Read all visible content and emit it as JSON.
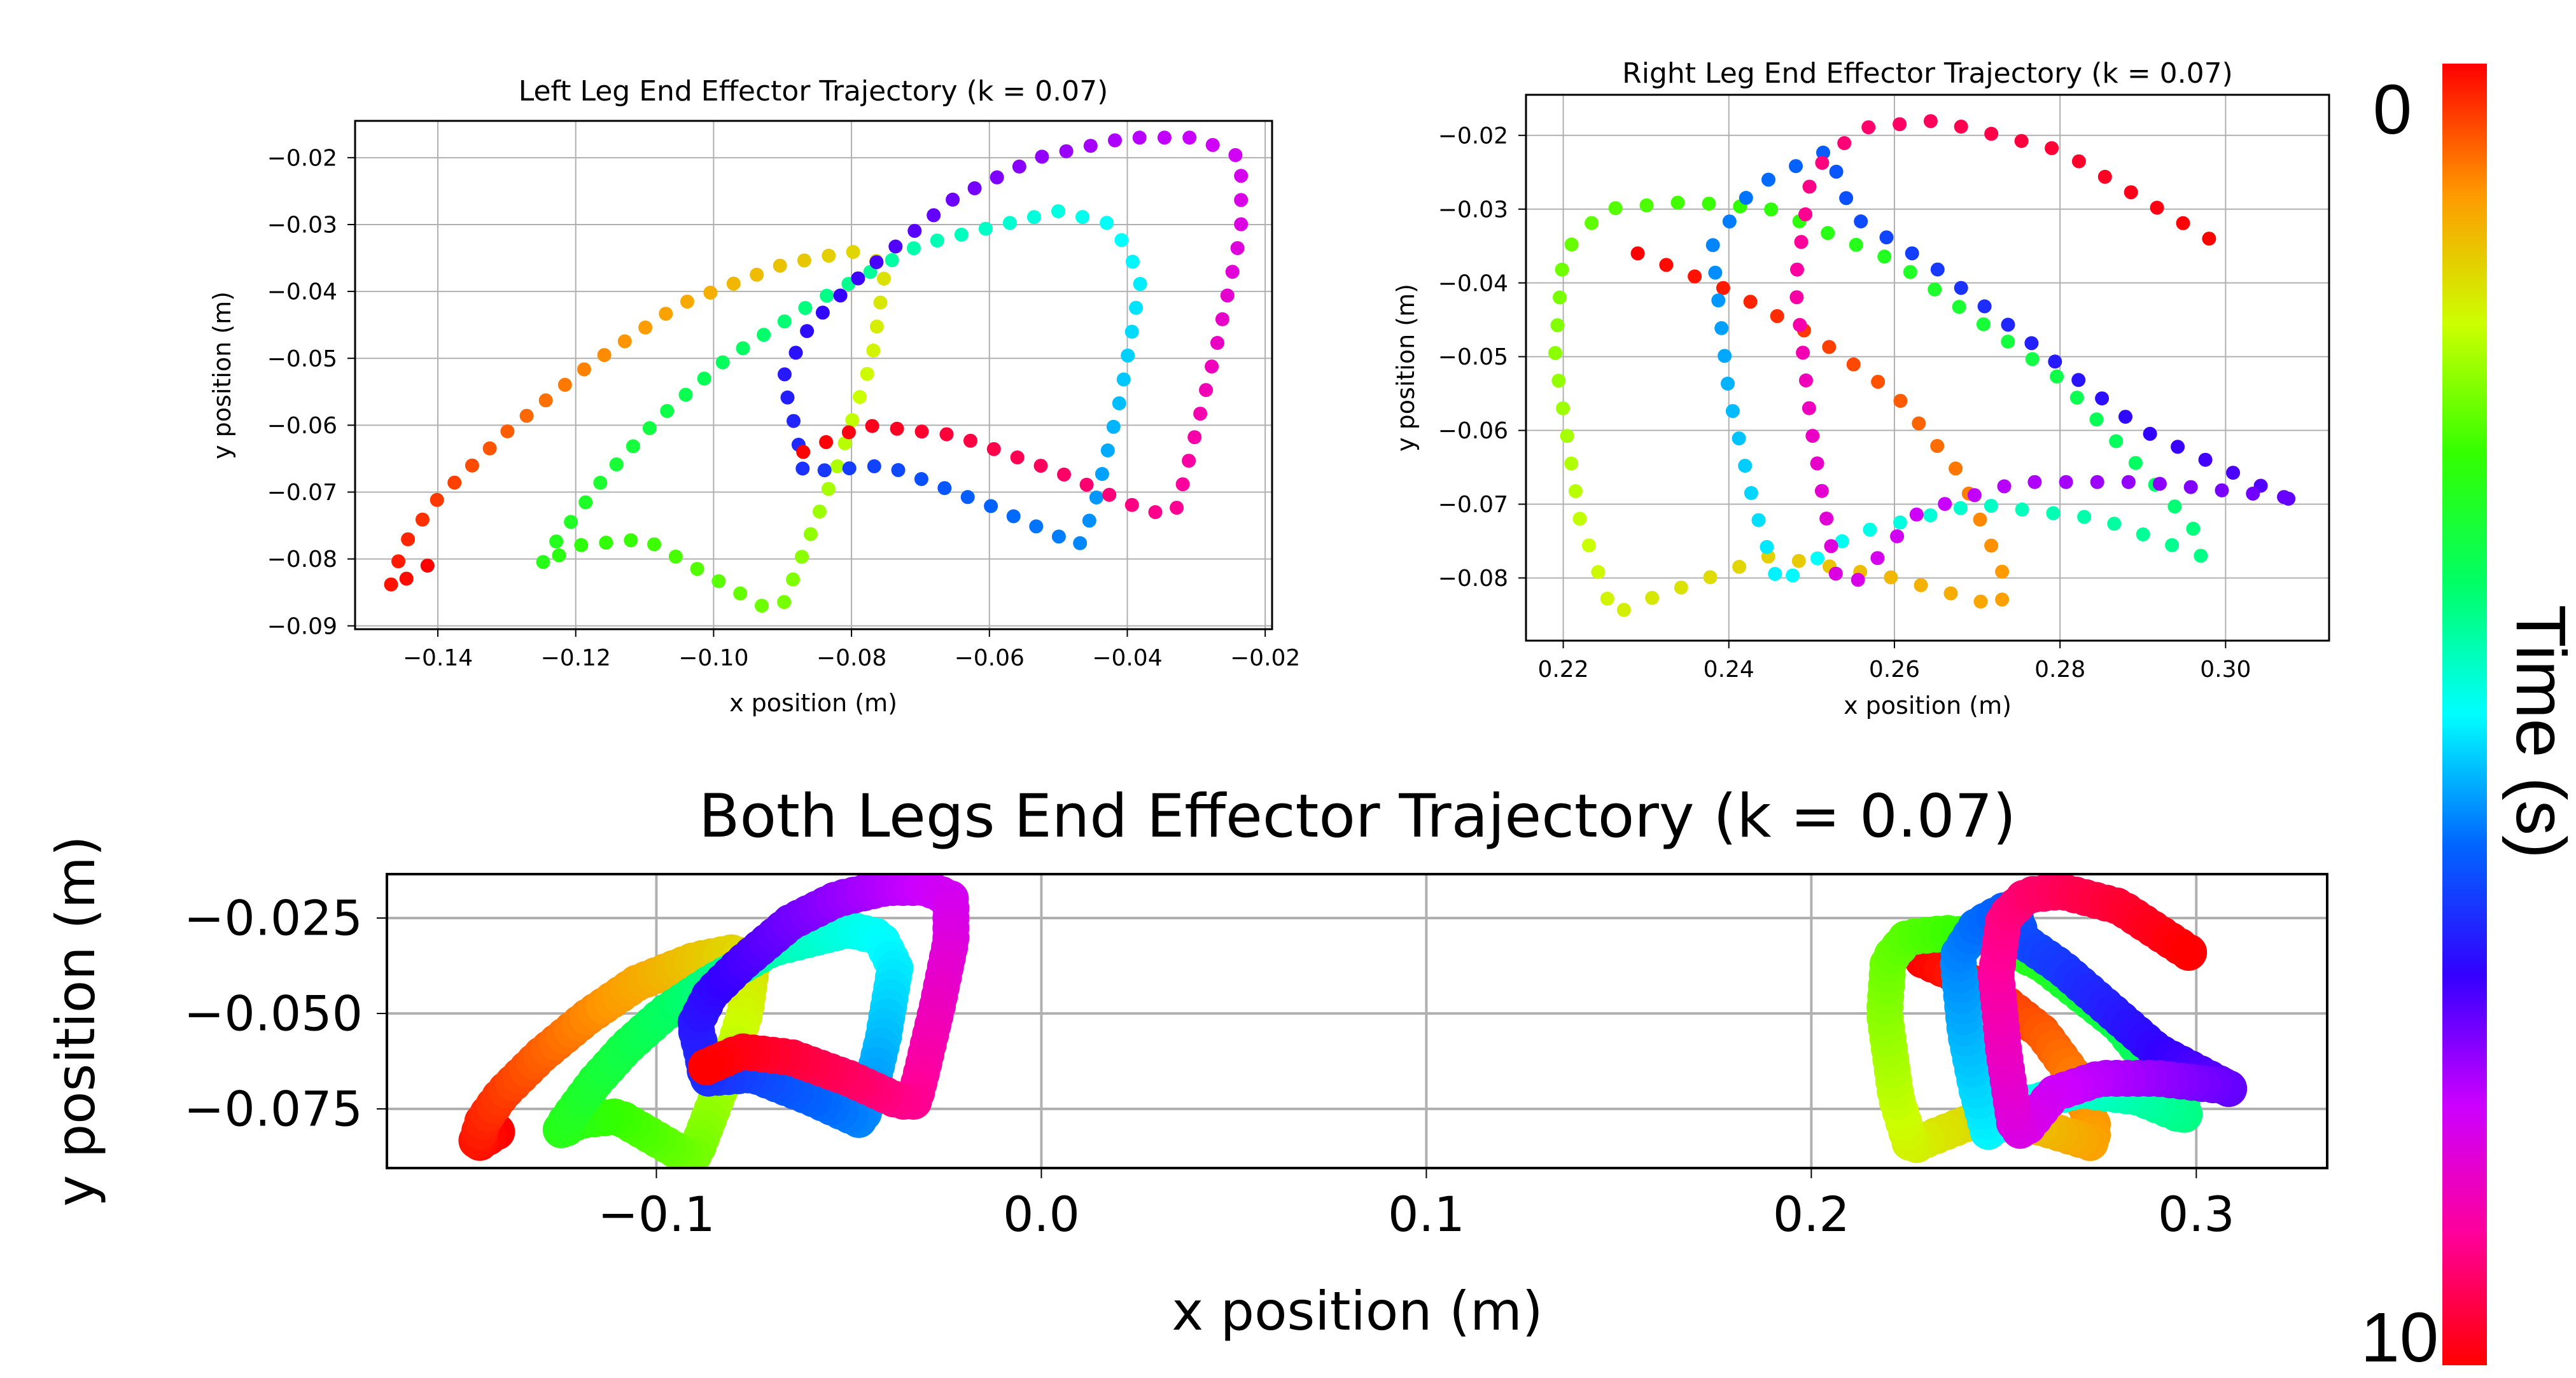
{
  "chart_data": [
    {
      "id": "left",
      "type": "scatter",
      "title": "Left Leg End Effector Trajectory (k = 0.07)",
      "xlabel": "x position (m)",
      "ylabel": "y position (m)",
      "xlim": [
        -0.152,
        -0.019
      ],
      "ylim": [
        -0.0905,
        -0.0145
      ],
      "xticks": [
        -0.14,
        -0.12,
        -0.1,
        -0.08,
        -0.06,
        -0.04,
        -0.02
      ],
      "xtick_labels": [
        "−0.14",
        "−0.12",
        "−0.10",
        "−0.08",
        "−0.06",
        "−0.04",
        "−0.02"
      ],
      "yticks": [
        -0.02,
        -0.03,
        -0.04,
        -0.05,
        -0.06,
        -0.07,
        -0.08,
        -0.09
      ],
      "ytick_labels": [
        "−0.02",
        "−0.03",
        "−0.04",
        "−0.05",
        "−0.06",
        "−0.07",
        "−0.08",
        "−0.09"
      ],
      "grid": true,
      "color_by": "time (0 → 10 s)",
      "path": [
        [
          -0.1415,
          -0.081
        ],
        [
          -0.147,
          -0.0845
        ],
        [
          -0.145,
          -0.078
        ],
        [
          -0.14,
          -0.071
        ],
        [
          -0.13,
          -0.061
        ],
        [
          -0.118,
          -0.051
        ],
        [
          -0.105,
          -0.042
        ],
        [
          -0.09,
          -0.036
        ],
        [
          -0.08,
          -0.034
        ],
        [
          -0.075,
          -0.036
        ],
        [
          -0.077,
          -0.05
        ],
        [
          -0.082,
          -0.066
        ],
        [
          -0.09,
          -0.087
        ],
        [
          -0.093,
          -0.087
        ],
        [
          -0.11,
          -0.077
        ],
        [
          -0.12,
          -0.078
        ],
        [
          -0.125,
          -0.081
        ],
        [
          -0.124,
          -0.079
        ],
        [
          -0.116,
          -0.068
        ],
        [
          -0.108,
          -0.059
        ],
        [
          -0.098,
          -0.05
        ],
        [
          -0.086,
          -0.042
        ],
        [
          -0.07,
          -0.033
        ],
        [
          -0.05,
          -0.028
        ],
        [
          -0.042,
          -0.03
        ],
        [
          -0.038,
          -0.038
        ],
        [
          -0.041,
          -0.056
        ],
        [
          -0.045,
          -0.073
        ],
        [
          -0.047,
          -0.078
        ],
        [
          -0.06,
          -0.072
        ],
        [
          -0.075,
          -0.066
        ],
        [
          -0.087,
          -0.067
        ],
        [
          -0.088,
          -0.061
        ],
        [
          -0.09,
          -0.053
        ],
        [
          -0.086,
          -0.045
        ],
        [
          -0.078,
          -0.037
        ],
        [
          -0.065,
          -0.026
        ],
        [
          -0.053,
          -0.02
        ],
        [
          -0.04,
          -0.017
        ],
        [
          -0.03,
          -0.017
        ],
        [
          -0.0235,
          -0.02
        ],
        [
          -0.0235,
          -0.031
        ],
        [
          -0.027,
          -0.048
        ],
        [
          -0.031,
          -0.065
        ],
        [
          -0.033,
          -0.073
        ],
        [
          -0.037,
          -0.073
        ],
        [
          -0.05,
          -0.067
        ],
        [
          -0.065,
          -0.0615
        ],
        [
          -0.078,
          -0.06
        ],
        [
          -0.087,
          -0.064
        ]
      ]
    },
    {
      "id": "right",
      "type": "scatter",
      "title": "Right Leg End Effector Trajectory (k = 0.07)",
      "xlabel": "x position (m)",
      "ylabel": "y position (m)",
      "xlim": [
        0.2155,
        0.3125
      ],
      "ylim": [
        -0.0885,
        -0.0145
      ],
      "xticks": [
        0.22,
        0.24,
        0.26,
        0.28,
        0.3
      ],
      "xtick_labels": [
        "0.22",
        "0.24",
        "0.26",
        "0.28",
        "0.30"
      ],
      "yticks": [
        -0.02,
        -0.03,
        -0.04,
        -0.05,
        -0.06,
        -0.07,
        -0.08
      ],
      "ytick_labels": [
        "−0.02",
        "−0.03",
        "−0.04",
        "−0.05",
        "−0.06",
        "−0.07",
        "−0.08"
      ],
      "grid": true,
      "color_by": "time (0 → 10 s)",
      "path": [
        [
          0.229,
          -0.036
        ],
        [
          0.24,
          -0.041
        ],
        [
          0.25,
          -0.047
        ],
        [
          0.26,
          -0.055
        ],
        [
          0.268,
          -0.066
        ],
        [
          0.273,
          -0.079
        ],
        [
          0.273,
          -0.084
        ],
        [
          0.26,
          -0.08
        ],
        [
          0.245,
          -0.077
        ],
        [
          0.23,
          -0.083
        ],
        [
          0.226,
          -0.085
        ],
        [
          0.222,
          -0.072
        ],
        [
          0.219,
          -0.05
        ],
        [
          0.22,
          -0.036
        ],
        [
          0.225,
          -0.03
        ],
        [
          0.235,
          -0.029
        ],
        [
          0.245,
          -0.03
        ],
        [
          0.26,
          -0.037
        ],
        [
          0.28,
          -0.053
        ],
        [
          0.296,
          -0.073
        ],
        [
          0.297,
          -0.077
        ],
        [
          0.285,
          -0.072
        ],
        [
          0.27,
          -0.07
        ],
        [
          0.255,
          -0.074
        ],
        [
          0.246,
          -0.081
        ],
        [
          0.243,
          -0.07
        ],
        [
          0.24,
          -0.055
        ],
        [
          0.238,
          -0.035
        ],
        [
          0.243,
          -0.027
        ],
        [
          0.252,
          -0.022
        ],
        [
          0.255,
          -0.031
        ],
        [
          0.265,
          -0.038
        ],
        [
          0.29,
          -0.06
        ],
        [
          0.309,
          -0.07
        ],
        [
          0.307,
          -0.069
        ],
        [
          0.29,
          -0.067
        ],
        [
          0.275,
          -0.067
        ],
        [
          0.263,
          -0.071
        ],
        [
          0.255,
          -0.081
        ],
        [
          0.253,
          -0.08
        ],
        [
          0.25,
          -0.06
        ],
        [
          0.248,
          -0.04
        ],
        [
          0.25,
          -0.025
        ],
        [
          0.256,
          -0.019
        ],
        [
          0.265,
          -0.018
        ],
        [
          0.28,
          -0.022
        ],
        [
          0.298,
          -0.034
        ]
      ]
    },
    {
      "id": "both",
      "type": "scatter",
      "title": "Both Legs End Effector Trajectory (k = 0.07)",
      "xlabel": "x position (m)",
      "ylabel": "y position (m)",
      "xlim": [
        -0.17,
        0.334
      ],
      "ylim": [
        -0.0905,
        -0.0135
      ],
      "xticks": [
        -0.1,
        0.0,
        0.1,
        0.2,
        0.3
      ],
      "xtick_labels": [
        "−0.1",
        "0.0",
        "0.1",
        "0.2",
        "0.3"
      ],
      "yticks": [
        -0.025,
        -0.05,
        -0.075
      ],
      "ytick_labels": [
        "−0.025",
        "−0.050",
        "−0.075"
      ],
      "grid": true,
      "color_by": "time (0 → 10 s)",
      "series_refs": [
        "left",
        "right"
      ]
    }
  ],
  "colorbar": {
    "label": "Time (s)",
    "min_label": "0",
    "max_label": "10",
    "range": [
      0,
      10
    ],
    "colormap": "hsv",
    "stops": [
      "#ff0000",
      "#ff9900",
      "#ccff00",
      "#33ff00",
      "#00ff66",
      "#00ffff",
      "#0066ff",
      "#3300ff",
      "#cc00ff",
      "#ff0099",
      "#ff0000"
    ]
  }
}
